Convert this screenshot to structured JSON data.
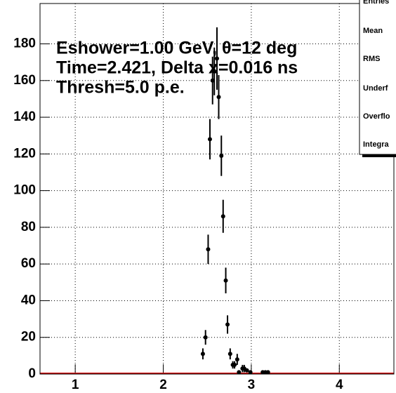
{
  "chart_data": {
    "type": "scatter",
    "annotations": [
      "Eshower=1.00 GeV, θ=12 deg",
      "Time=2.421, Delta x=0.016 ns",
      "Thresh=5.0 p.e."
    ],
    "stats_labels": [
      "Entries",
      "Mean",
      "RMS",
      "Underf",
      "Overflo",
      "Integra"
    ],
    "x": [
      2.45,
      2.48,
      2.51,
      2.53,
      2.56,
      2.58,
      2.61,
      2.63,
      2.66,
      2.68,
      2.71,
      2.73,
      2.76,
      2.79,
      2.81,
      2.84,
      2.86,
      2.9,
      2.92,
      2.95,
      2.99,
      3.13,
      3.16,
      3.19
    ],
    "values": [
      11,
      20,
      68,
      128,
      160,
      165,
      172,
      151,
      119,
      86,
      51,
      27,
      11,
      5,
      5,
      8,
      1,
      3,
      3,
      2,
      1,
      1,
      1,
      1
    ],
    "errors": [
      3,
      4,
      8,
      11,
      13,
      13,
      17,
      12,
      11,
      9,
      7,
      5,
      3,
      2,
      2,
      3,
      1,
      2,
      2,
      1,
      1,
      1,
      1,
      1
    ],
    "color": "#000000",
    "baseline_color": "#cc0000",
    "xlim": [
      0.6,
      4.62
    ],
    "xticks": [
      1,
      2,
      3,
      4
    ],
    "ylim": [
      0,
      202
    ],
    "yticks": [
      0,
      20,
      40,
      60,
      80,
      100,
      120,
      140,
      160,
      180
    ],
    "grid": true
  }
}
